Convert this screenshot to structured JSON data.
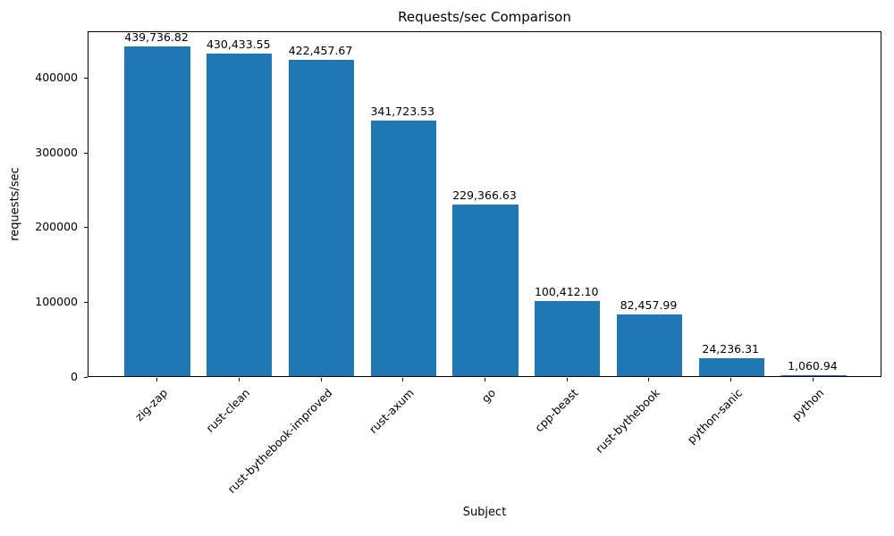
{
  "chart_data": {
    "type": "bar",
    "title": "Requests/sec Comparison",
    "xlabel": "Subject",
    "ylabel": "requests/sec",
    "categories": [
      "zig-zap",
      "rust-clean",
      "rust-bythebook-improved",
      "rust-axum",
      "go",
      "cpp-beast",
      "rust-bythebook",
      "python-sanic",
      "python"
    ],
    "values": [
      439736.82,
      430433.55,
      422457.67,
      341723.53,
      229366.63,
      100412.1,
      82457.99,
      24236.31,
      1060.94
    ],
    "value_labels": [
      "439,736.82",
      "430,433.55",
      "422,457.67",
      "341,723.53",
      "229,366.63",
      "100,412.10",
      "82,457.99",
      "24,236.31",
      "1,060.94"
    ],
    "yticks": [
      0,
      100000,
      200000,
      300000,
      400000
    ],
    "ytick_labels": [
      "0",
      "100000",
      "200000",
      "300000",
      "400000"
    ],
    "ylim": [
      0,
      461723.66
    ],
    "bar_color": "#1f77b4",
    "bar_width_ratio": 0.8,
    "grid": false,
    "legend": null
  }
}
